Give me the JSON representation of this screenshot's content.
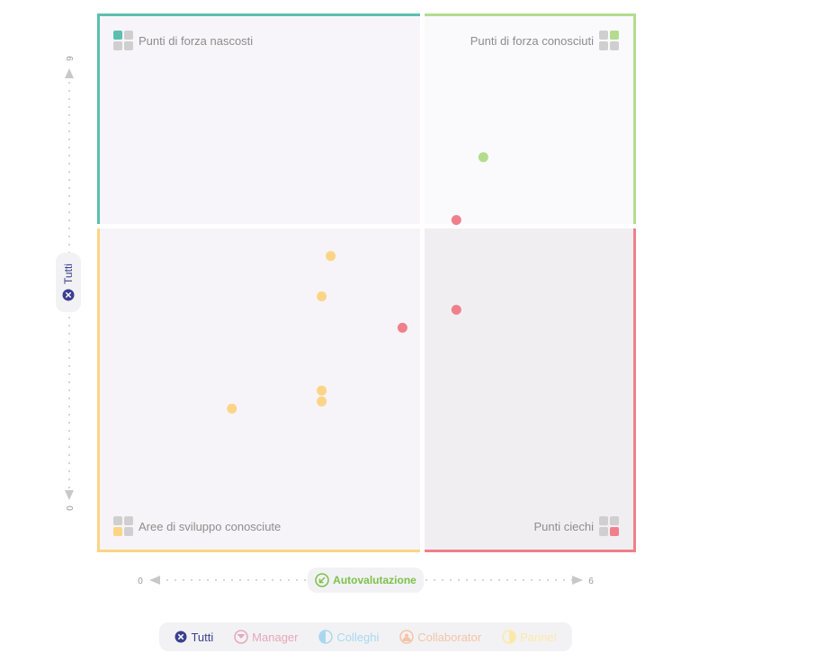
{
  "colors": {
    "hidden_strengths": "#5cbfaf",
    "known_strengths": "#b3dc8f",
    "development_areas": "#fcd485",
    "blind_spots": "#f07f8c",
    "accent_dark": "#3b3f8f",
    "self_eval": "#7cc14c"
  },
  "quadrants": {
    "top_left": "Punti di forza nascosti",
    "top_right": "Punti di forza conosciuti",
    "bottom_left": "Aree di sviluppo conosciute",
    "bottom_right": "Punti ciechi"
  },
  "y_axis": {
    "label": "Tutti",
    "icon": "x-circle-icon",
    "min_label": "0",
    "max_label": "6"
  },
  "x_axis": {
    "label": "Autovalutazione",
    "icon": "arrow-in-circle-icon",
    "min_label": "0",
    "max_label": "6"
  },
  "legend": [
    {
      "label": "Tutti",
      "icon": "x-circle-icon",
      "color": "#3b3f8f",
      "active": true
    },
    {
      "label": "Manager",
      "icon": "manager-icon",
      "color": "#e8a7b9",
      "active": false
    },
    {
      "label": "Colleghi",
      "icon": "colleagues-icon",
      "color": "#a8d8ef",
      "active": false
    },
    {
      "label": "Collaborator",
      "icon": "collaborator-icon",
      "color": "#f5c4a6",
      "active": false
    },
    {
      "label": "Pannel",
      "icon": "panel-icon",
      "color": "#fbe9a8",
      "active": false
    }
  ],
  "chart_data": {
    "type": "scatter",
    "xlabel": "Autovalutazione",
    "ylabel": "Tutti",
    "xlim": [
      0,
      6
    ],
    "ylim": [
      0,
      6
    ],
    "quadrant_split": {
      "x": 3.0,
      "y": 3.9
    },
    "points": [
      {
        "x": 4.3,
        "y": 4.4,
        "quadrant": "known_strengths"
      },
      {
        "x": 4.0,
        "y": 3.7,
        "quadrant": "blind_spots"
      },
      {
        "x": 4.0,
        "y": 2.7,
        "quadrant": "blind_spots"
      },
      {
        "x": 3.4,
        "y": 2.5,
        "quadrant": "blind_spots"
      },
      {
        "x": 2.6,
        "y": 3.3,
        "quadrant": "development_areas"
      },
      {
        "x": 2.5,
        "y": 2.85,
        "quadrant": "development_areas"
      },
      {
        "x": 2.5,
        "y": 1.8,
        "quadrant": "development_areas"
      },
      {
        "x": 2.5,
        "y": 1.68,
        "quadrant": "development_areas"
      },
      {
        "x": 1.5,
        "y": 1.6,
        "quadrant": "development_areas"
      }
    ]
  }
}
